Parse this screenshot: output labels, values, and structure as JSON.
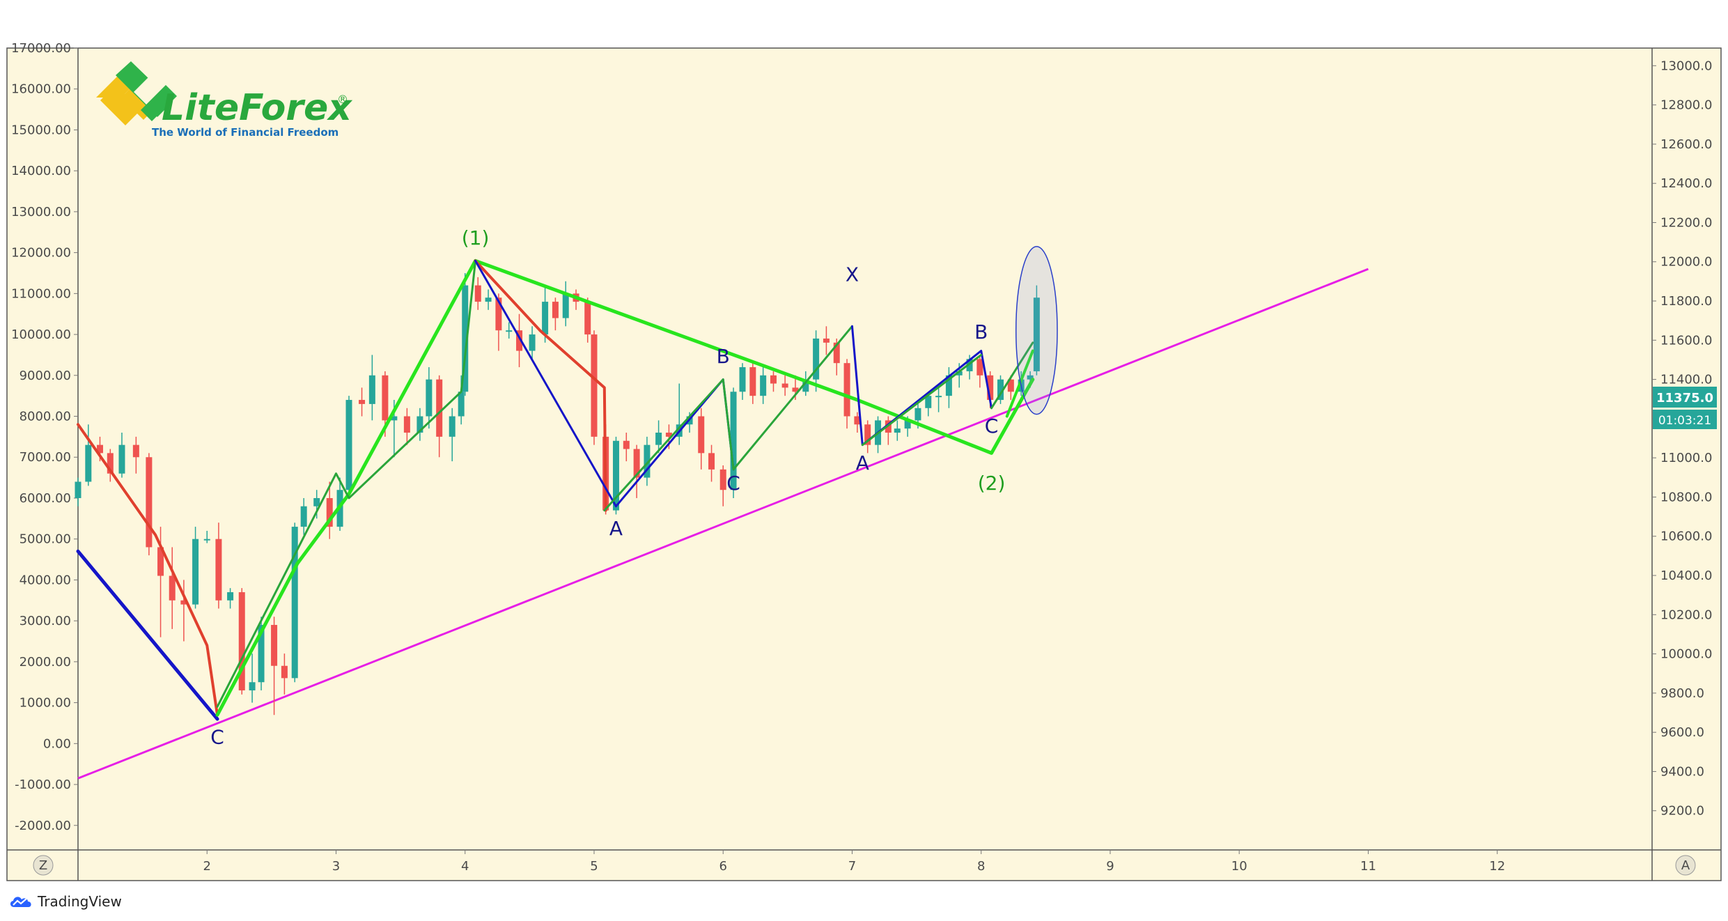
{
  "colors": {
    "background": "#fdf7dd",
    "up_candle": "#26a69a",
    "down_candle": "#ef5350",
    "wave_bright_green": "#28e51e",
    "wave_dark_green": "#2aa53a",
    "wave_blue": "#1515c8",
    "wave_red": "#e0402e",
    "trendline": "#e61ee6",
    "label_green": "#1f9e1f",
    "label_blue": "#16168a",
    "price_tag": "#26a69a"
  },
  "logo": {
    "name": "LiteForex",
    "mark": "®",
    "tagline": "The World of Financial Freedom"
  },
  "branding": {
    "label": "TradingView",
    "icon": "tradingview-cloud-icon"
  },
  "axis_buttons": {
    "left": "Z",
    "right": "A"
  },
  "price_tag": {
    "price": "11375.0",
    "countdown": "01:03:21"
  },
  "chart_data": {
    "type": "candlestick",
    "x_ticks": [
      "2",
      "3",
      "4",
      "5",
      "6",
      "7",
      "8",
      "9",
      "10",
      "11",
      "12"
    ],
    "xlim": [
      1,
      13.2
    ],
    "left_axis": {
      "ylim": [
        -2600,
        17000
      ],
      "ticks": [
        "17000.00",
        "16000.00",
        "15000.00",
        "14000.00",
        "13000.00",
        "12000.00",
        "11000.00",
        "10000.00",
        "9000.00",
        "8000.00",
        "7000.00",
        "6000.00",
        "5000.00",
        "4000.00",
        "3000.00",
        "2000.00",
        "1000.00",
        "0.00",
        "-1000.00",
        "-2000.00"
      ]
    },
    "right_axis": {
      "ylim": [
        9000,
        13090
      ],
      "ticks": [
        "13000.0",
        "12800.0",
        "12600.0",
        "12400.0",
        "12200.0",
        "12000.0",
        "11800.0",
        "11600.0",
        "11400.0",
        "11200.0",
        "11000.0",
        "10800.0",
        "10600.0",
        "10400.0",
        "10200.0",
        "10000.0",
        "9800.0",
        "9600.0",
        "9400.0",
        "9200.0"
      ]
    },
    "candles": [
      [
        1.0,
        6000,
        6400,
        5800,
        6500
      ],
      [
        1.08,
        6400,
        7300,
        6300,
        7800
      ],
      [
        1.17,
        7300,
        7100,
        6900,
        7500
      ],
      [
        1.25,
        7100,
        6600,
        6400,
        7200
      ],
      [
        1.34,
        6600,
        7300,
        6500,
        7600
      ],
      [
        1.45,
        7300,
        7000,
        6600,
        7500
      ],
      [
        1.55,
        7000,
        4800,
        4600,
        7100
      ],
      [
        1.64,
        4800,
        4100,
        2600,
        5300
      ],
      [
        1.73,
        4100,
        3500,
        2800,
        4800
      ],
      [
        1.82,
        3500,
        3400,
        2500,
        4000
      ],
      [
        1.91,
        3400,
        5000,
        3300,
        5300
      ],
      [
        2.0,
        5000,
        5000,
        4900,
        5200
      ],
      [
        2.09,
        5000,
        3500,
        3300,
        5400
      ],
      [
        2.18,
        3500,
        3700,
        3300,
        3800
      ],
      [
        2.27,
        3700,
        1300,
        1200,
        3800
      ],
      [
        2.35,
        1300,
        1500,
        1000,
        2200
      ],
      [
        2.42,
        1500,
        2900,
        1300,
        3100
      ],
      [
        2.52,
        2900,
        1900,
        700,
        3100
      ],
      [
        2.6,
        1900,
        1600,
        1200,
        2200
      ],
      [
        2.68,
        1600,
        5300,
        1500,
        5400
      ],
      [
        2.75,
        5300,
        5800,
        5100,
        6000
      ],
      [
        2.85,
        5800,
        6000,
        5500,
        6200
      ],
      [
        2.95,
        6000,
        5300,
        5000,
        6400
      ],
      [
        3.03,
        5300,
        6200,
        5200,
        6500
      ],
      [
        3.1,
        6200,
        8400,
        6100,
        8500
      ],
      [
        3.2,
        8400,
        8300,
        8000,
        8700
      ],
      [
        3.28,
        8300,
        9000,
        7900,
        9500
      ],
      [
        3.38,
        9000,
        7900,
        7500,
        9100
      ],
      [
        3.45,
        7900,
        8000,
        7000,
        8400
      ],
      [
        3.55,
        8000,
        7600,
        7300,
        8200
      ],
      [
        3.65,
        7600,
        8000,
        7400,
        8200
      ],
      [
        3.72,
        8000,
        8900,
        7700,
        9200
      ],
      [
        3.8,
        8900,
        7500,
        7000,
        9000
      ],
      [
        3.9,
        7500,
        8000,
        6900,
        8200
      ],
      [
        3.97,
        8000,
        8600,
        7800,
        9000
      ],
      [
        4.0,
        8600,
        11200,
        8500,
        11500
      ],
      [
        4.1,
        11200,
        10800,
        10600,
        11400
      ],
      [
        4.18,
        10800,
        10900,
        10600,
        11100
      ],
      [
        4.26,
        10900,
        10100,
        9600,
        11000
      ],
      [
        4.34,
        10100,
        10100,
        9900,
        10300
      ],
      [
        4.42,
        10100,
        9600,
        9200,
        10500
      ],
      [
        4.52,
        9600,
        10000,
        9400,
        10200
      ],
      [
        4.62,
        10000,
        10800,
        9800,
        11200
      ],
      [
        4.7,
        10800,
        10400,
        10100,
        10900
      ],
      [
        4.78,
        10400,
        11000,
        10200,
        11300
      ],
      [
        4.86,
        11000,
        10800,
        10600,
        11100
      ],
      [
        4.95,
        10800,
        10000,
        9800,
        10900
      ],
      [
        5.0,
        10000,
        7500,
        7300,
        10100
      ],
      [
        5.09,
        7500,
        5700,
        5600,
        7800
      ],
      [
        5.17,
        5700,
        7400,
        5600,
        7500
      ],
      [
        5.25,
        7400,
        7200,
        6900,
        7600
      ],
      [
        5.33,
        7200,
        6500,
        6000,
        7300
      ],
      [
        5.41,
        6500,
        7300,
        6300,
        7500
      ],
      [
        5.5,
        7300,
        7600,
        7100,
        7900
      ],
      [
        5.58,
        7600,
        7500,
        7200,
        7800
      ],
      [
        5.66,
        7500,
        7800,
        7300,
        8800
      ],
      [
        5.74,
        7800,
        8000,
        7600,
        8100
      ],
      [
        5.83,
        8000,
        7100,
        6700,
        8200
      ],
      [
        5.91,
        7100,
        6700,
        6400,
        7300
      ],
      [
        6.0,
        6700,
        6200,
        5800,
        6800
      ],
      [
        6.08,
        6200,
        8600,
        6000,
        8700
      ],
      [
        6.15,
        8600,
        9200,
        8400,
        9300
      ],
      [
        6.23,
        9200,
        8500,
        8300,
        9300
      ],
      [
        6.31,
        8500,
        9000,
        8300,
        9200
      ],
      [
        6.39,
        9000,
        8800,
        8600,
        9100
      ],
      [
        6.48,
        8800,
        8700,
        8500,
        9000
      ],
      [
        6.56,
        8700,
        8600,
        8400,
        9000
      ],
      [
        6.64,
        8600,
        8900,
        8500,
        9100
      ],
      [
        6.72,
        8900,
        9900,
        8600,
        10100
      ],
      [
        6.8,
        9900,
        9800,
        9500,
        10200
      ],
      [
        6.88,
        9800,
        9300,
        9000,
        9900
      ],
      [
        6.96,
        9300,
        8000,
        7700,
        9400
      ],
      [
        7.04,
        8000,
        7800,
        7600,
        8100
      ],
      [
        7.12,
        7800,
        7300,
        7100,
        7900
      ],
      [
        7.2,
        7300,
        7900,
        7100,
        8000
      ],
      [
        7.28,
        7900,
        7600,
        7300,
        8000
      ],
      [
        7.35,
        7600,
        7700,
        7400,
        7900
      ],
      [
        7.43,
        7700,
        7900,
        7500,
        8000
      ],
      [
        7.51,
        7900,
        8200,
        7700,
        8300
      ],
      [
        7.59,
        8200,
        8500,
        8000,
        8600
      ],
      [
        7.67,
        8500,
        8500,
        8100,
        8700
      ],
      [
        7.75,
        8500,
        9000,
        8200,
        9200
      ],
      [
        7.83,
        9000,
        9100,
        8700,
        9300
      ],
      [
        7.91,
        9100,
        9400,
        8900,
        9500
      ],
      [
        7.99,
        9400,
        9000,
        8700,
        9500
      ],
      [
        8.07,
        9000,
        8400,
        8200,
        9100
      ],
      [
        8.15,
        8400,
        8900,
        8300,
        9000
      ],
      [
        8.23,
        8900,
        8600,
        8400,
        9000
      ],
      [
        8.31,
        8600,
        8900,
        8500,
        9100
      ],
      [
        8.38,
        8900,
        9000,
        8700,
        9100
      ],
      [
        8.43,
        9100,
        10900,
        9000,
        11200
      ]
    ],
    "waves": [
      {
        "color": "wave_blue",
        "width": 5,
        "points": [
          [
            1.0,
            4700
          ],
          [
            2.08,
            600
          ]
        ]
      },
      {
        "color": "wave_red",
        "width": 4,
        "points": [
          [
            1.0,
            7800
          ],
          [
            1.6,
            5100
          ],
          [
            2.0,
            2400
          ],
          [
            2.08,
            700
          ]
        ]
      },
      {
        "color": "wave_bright_green",
        "width": 5,
        "points": [
          [
            2.08,
            700
          ],
          [
            2.7,
            4400
          ],
          [
            3.1,
            6100
          ],
          [
            4.08,
            11800
          ],
          [
            7.04,
            8400
          ],
          [
            8.08,
            7100
          ],
          [
            8.4,
            8900
          ]
        ]
      },
      {
        "color": "wave_bright_green",
        "width": 4,
        "points": [
          [
            8.2,
            8000
          ],
          [
            8.4,
            9600
          ]
        ]
      },
      {
        "color": "wave_dark_green",
        "width": 3,
        "points": [
          [
            2.08,
            900
          ],
          [
            3.0,
            6600
          ],
          [
            3.1,
            6000
          ],
          [
            3.97,
            8600
          ],
          [
            4.08,
            11800
          ]
        ]
      },
      {
        "color": "wave_red",
        "width": 4,
        "points": [
          [
            4.08,
            11800
          ],
          [
            4.58,
            10100
          ],
          [
            5.08,
            8700
          ],
          [
            5.09,
            5700
          ]
        ]
      },
      {
        "color": "wave_blue",
        "width": 3,
        "points": [
          [
            4.08,
            11800
          ],
          [
            5.17,
            5800
          ],
          [
            6.0,
            8900
          ],
          [
            6.08,
            6700
          ]
        ]
      },
      {
        "color": "wave_dark_green",
        "width": 3,
        "points": [
          [
            5.08,
            5700
          ],
          [
            6.0,
            8900
          ],
          [
            6.08,
            6700
          ],
          [
            7.0,
            10200
          ]
        ]
      },
      {
        "color": "wave_blue",
        "width": 3,
        "points": [
          [
            7.0,
            10200
          ],
          [
            7.08,
            7300
          ],
          [
            8.0,
            9600
          ],
          [
            8.08,
            8200
          ]
        ]
      },
      {
        "color": "wave_dark_green",
        "width": 3,
        "points": [
          [
            7.08,
            7300
          ],
          [
            8.0,
            9500
          ]
        ]
      },
      {
        "color": "wave_dark_green",
        "width": 3,
        "points": [
          [
            8.08,
            8200
          ],
          [
            8.4,
            9800
          ]
        ]
      }
    ],
    "trendline": {
      "color": "trendline",
      "width": 3,
      "points": [
        [
          1.0,
          -850
        ],
        [
          11.0,
          11600
        ]
      ]
    },
    "highlight_ellipse": {
      "x": 8.43,
      "y": 10100,
      "rx_units": 0.16,
      "ry_units": 2050
    },
    "labels": [
      {
        "text": "(1)",
        "x": 4.08,
        "y": 12200,
        "color": "label_green"
      },
      {
        "text": "(2)",
        "x": 8.08,
        "y": 6200,
        "color": "label_green"
      },
      {
        "text": "X",
        "x": 7.0,
        "y": 11300,
        "color": "label_blue"
      },
      {
        "text": "A",
        "x": 5.17,
        "y": 5100,
        "color": "label_blue"
      },
      {
        "text": "B",
        "x": 6.0,
        "y": 9300,
        "color": "label_blue"
      },
      {
        "text": "C",
        "x": 6.08,
        "y": 6200,
        "color": "label_blue"
      },
      {
        "text": "A",
        "x": 7.08,
        "y": 6700,
        "color": "label_blue"
      },
      {
        "text": "B",
        "x": 8.0,
        "y": 9900,
        "color": "label_blue"
      },
      {
        "text": "C",
        "x": 8.08,
        "y": 7600,
        "color": "label_blue"
      },
      {
        "text": "C",
        "x": 2.08,
        "y": 0,
        "color": "label_blue"
      }
    ]
  }
}
